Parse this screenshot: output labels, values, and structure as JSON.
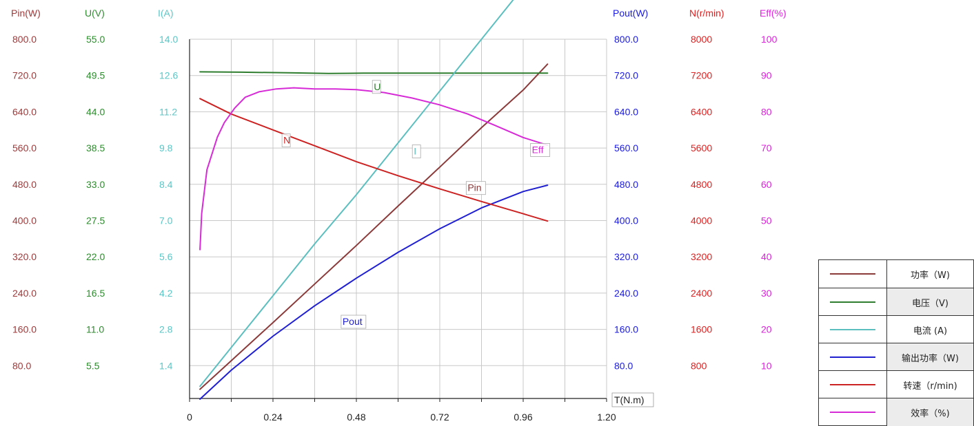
{
  "chart_data": {
    "type": "line",
    "x_axis": {
      "label": "T(N.m)",
      "ticks": [
        "0",
        "0.24",
        "0.48",
        "0.72",
        "0.96",
        "1.20"
      ],
      "range": [
        0,
        1.2
      ]
    },
    "y_axes": [
      {
        "id": "pin",
        "label": "Pin(W)",
        "color": "#a0393a",
        "range": [
          0,
          800
        ],
        "ticks": [
          "800.0",
          "720.0",
          "640.0",
          "560.0",
          "480.0",
          "400.0",
          "320.0",
          "240.0",
          "160.0",
          "80.0"
        ]
      },
      {
        "id": "u",
        "label": "U(V)",
        "color": "#2e8b2e",
        "range": [
          0,
          55
        ],
        "ticks": [
          "55.0",
          "49.5",
          "44.0",
          "38.5",
          "33.0",
          "27.5",
          "22.0",
          "16.5",
          "11.0",
          "5.5"
        ]
      },
      {
        "id": "i",
        "label": "I(A)",
        "color": "#5cc6c6",
        "range": [
          0,
          14
        ],
        "ticks": [
          "14.0",
          "12.6",
          "11.2",
          "9.8",
          "8.4",
          "7.0",
          "5.6",
          "4.2",
          "2.8",
          "1.4"
        ]
      },
      {
        "id": "pout",
        "label": "Pout(W)",
        "color": "#1a1adf",
        "range": [
          0,
          800
        ],
        "ticks": [
          "800.0",
          "720.0",
          "640.0",
          "560.0",
          "480.0",
          "400.0",
          "320.0",
          "240.0",
          "160.0",
          "80.0"
        ]
      },
      {
        "id": "n",
        "label": "N(r/min)",
        "color": "#e02020",
        "range": [
          0,
          8000
        ],
        "ticks": [
          "8000",
          "7200",
          "6400",
          "5600",
          "4800",
          "4000",
          "3200",
          "2400",
          "1600",
          "800"
        ]
      },
      {
        "id": "eff",
        "label": "Eff(%)",
        "color": "#e020e0",
        "range": [
          0,
          100
        ],
        "ticks": [
          "100",
          "90",
          "80",
          "70",
          "60",
          "50",
          "40",
          "30",
          "20",
          "10"
        ]
      }
    ],
    "grid": true,
    "legend_position": "bottom-right",
    "series": [
      {
        "name": "功率（W)",
        "axis": "pin",
        "color": "#8b3a3a",
        "tag": "Pin",
        "tag_pos": [
          0.8,
          465
        ],
        "x": [
          0.03,
          0.12,
          0.24,
          0.36,
          0.48,
          0.6,
          0.72,
          0.84,
          0.96,
          1.03
        ],
        "y": [
          28,
          91,
          175,
          260,
          345,
          432,
          518,
          605,
          688,
          745
        ]
      },
      {
        "name": "电压（V)",
        "axis": "u",
        "color": "#2e7d2e",
        "tag": "U",
        "tag_pos": [
          0.53,
          47.3
        ],
        "x": [
          0.03,
          0.15,
          0.3,
          0.4,
          0.5,
          0.7,
          0.9,
          1.03
        ],
        "y": [
          50.05,
          50.0,
          49.9,
          49.8,
          49.85,
          49.85,
          49.85,
          49.85
        ]
      },
      {
        "name": "电流 (A)",
        "axis": "i",
        "color": "#5cbfbf",
        "tag": "I",
        "tag_pos": [
          0.645,
          9.55
        ],
        "x": [
          0.03,
          0.12,
          0.24,
          0.36,
          0.48,
          0.6,
          0.72,
          0.84,
          0.96,
          1.03
        ],
        "y": [
          0.6,
          2.1,
          4.1,
          6.1,
          8.0,
          10.0,
          12.0,
          14.0,
          16.0,
          17.1
        ]
      },
      {
        "name": "输出功率（W)",
        "axis": "pout",
        "color": "#1f1fcf",
        "tag": "Pout",
        "tag_pos": [
          0.44,
          170
        ],
        "x": [
          0.03,
          0.12,
          0.24,
          0.36,
          0.48,
          0.6,
          0.72,
          0.84,
          0.96,
          1.03
        ],
        "y": [
          6,
          70,
          145,
          212,
          273,
          330,
          382,
          428,
          464,
          478
        ]
      },
      {
        "name": "转速（r/min)",
        "axis": "n",
        "color": "#cc2222",
        "tag": "N",
        "tag_pos": [
          0.27,
          5700
        ],
        "x": [
          0.03,
          0.12,
          0.24,
          0.36,
          0.48,
          0.6,
          0.72,
          0.84,
          0.96,
          1.03
        ],
        "y": [
          6690,
          6350,
          6000,
          5650,
          5300,
          4990,
          4700,
          4420,
          4150,
          3990
        ]
      },
      {
        "name": "效率（%)",
        "axis": "eff",
        "color": "#d72ad7",
        "tag": "Eff",
        "tag_pos": [
          0.985,
          68.6
        ],
        "x": [
          0.03,
          0.035,
          0.05,
          0.08,
          0.1,
          0.13,
          0.16,
          0.2,
          0.25,
          0.3,
          0.36,
          0.42,
          0.48,
          0.56,
          0.64,
          0.72,
          0.8,
          0.88,
          0.96,
          1.03
        ],
        "y": [
          42,
          52,
          64,
          73,
          77,
          81,
          84,
          85.5,
          86.3,
          86.6,
          86.3,
          86.3,
          86.1,
          85.3,
          83.8,
          81.9,
          79.4,
          76.2,
          72.9,
          70.8
        ]
      }
    ]
  }
}
